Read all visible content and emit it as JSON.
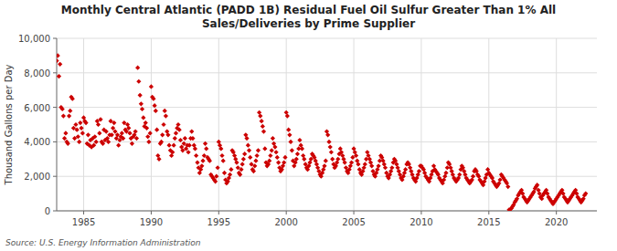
{
  "chart_data": {
    "type": "scatter",
    "title": "Monthly Central Atlantic (PADD 1B) Residual Fuel Oil Sulfur Greater Than 1% All\nSales/Deliveries by Prime Supplier",
    "ylabel": "Thousand Gallons per Day",
    "source": "Source: U.S. Energy Information Administration",
    "color": "#cc0000",
    "marker": "diamond",
    "grid": true,
    "xlim": [
      1983,
      2023
    ],
    "xticks": [
      1985,
      1990,
      1995,
      2000,
      2005,
      2010,
      2015,
      2020
    ],
    "ylim": [
      0,
      10000
    ],
    "yticks": [
      0,
      {
        "value": 2000,
        "label": "2,000"
      },
      {
        "value": 4000,
        "label": "4,000"
      },
      {
        "value": 6000,
        "label": "6,000"
      },
      {
        "value": 8000,
        "label": "8,000"
      },
      {
        "value": 10000,
        "label": "10,000"
      }
    ],
    "x": [
      1983.0,
      1983.08,
      1983.17,
      1983.25,
      1983.33,
      1983.42,
      1983.5,
      1983.58,
      1983.67,
      1983.75,
      1983.83,
      1983.92,
      1984.0,
      1984.08,
      1984.17,
      1984.25,
      1984.33,
      1984.42,
      1984.5,
      1984.58,
      1984.67,
      1984.75,
      1984.83,
      1984.92,
      1985.0,
      1985.08,
      1985.17,
      1985.25,
      1985.33,
      1985.42,
      1985.5,
      1985.58,
      1985.67,
      1985.75,
      1985.83,
      1985.92,
      1986.0,
      1986.08,
      1986.17,
      1986.25,
      1986.33,
      1986.42,
      1986.5,
      1986.58,
      1986.67,
      1986.75,
      1986.83,
      1986.92,
      1987.0,
      1987.08,
      1987.17,
      1987.25,
      1987.33,
      1987.42,
      1987.5,
      1987.58,
      1987.67,
      1987.75,
      1987.83,
      1987.92,
      1988.0,
      1988.08,
      1988.17,
      1988.25,
      1988.33,
      1988.42,
      1988.5,
      1988.58,
      1988.67,
      1988.75,
      1988.83,
      1988.92,
      1989.0,
      1989.08,
      1989.17,
      1989.25,
      1989.33,
      1989.42,
      1989.5,
      1989.58,
      1989.67,
      1989.75,
      1989.83,
      1989.92,
      1990.0,
      1990.08,
      1990.17,
      1990.25,
      1990.33,
      1990.42,
      1990.5,
      1990.58,
      1990.67,
      1990.75,
      1990.83,
      1990.92,
      1991.0,
      1991.08,
      1991.17,
      1991.25,
      1991.33,
      1991.42,
      1991.5,
      1991.58,
      1991.67,
      1991.75,
      1991.83,
      1991.92,
      1992.0,
      1992.08,
      1992.17,
      1992.25,
      1992.33,
      1992.42,
      1992.5,
      1992.58,
      1992.67,
      1992.75,
      1992.83,
      1992.92,
      1993.0,
      1993.08,
      1993.17,
      1993.25,
      1993.33,
      1993.42,
      1993.5,
      1993.58,
      1993.67,
      1993.75,
      1993.83,
      1993.92,
      1994.0,
      1994.08,
      1994.17,
      1994.25,
      1994.33,
      1994.42,
      1994.5,
      1994.58,
      1994.67,
      1994.75,
      1994.83,
      1994.92,
      1995.0,
      1995.08,
      1995.17,
      1995.25,
      1995.33,
      1995.42,
      1995.5,
      1995.58,
      1995.67,
      1995.75,
      1995.83,
      1995.92,
      1996.0,
      1996.08,
      1996.17,
      1996.25,
      1996.33,
      1996.42,
      1996.5,
      1996.58,
      1996.67,
      1996.75,
      1996.83,
      1996.92,
      1997.0,
      1997.08,
      1997.17,
      1997.25,
      1997.33,
      1997.42,
      1997.5,
      1997.58,
      1997.67,
      1997.75,
      1997.83,
      1997.92,
      1998.0,
      1998.08,
      1998.17,
      1998.25,
      1998.33,
      1998.42,
      1998.5,
      1998.58,
      1998.67,
      1998.75,
      1998.83,
      1998.92,
      1999.0,
      1999.08,
      1999.17,
      1999.25,
      1999.33,
      1999.42,
      1999.5,
      1999.58,
      1999.67,
      1999.75,
      1999.83,
      1999.92,
      2000.0,
      2000.08,
      2000.17,
      2000.25,
      2000.33,
      2000.42,
      2000.5,
      2000.58,
      2000.67,
      2000.75,
      2000.83,
      2000.92,
      2001.0,
      2001.08,
      2001.17,
      2001.25,
      2001.33,
      2001.42,
      2001.5,
      2001.58,
      2001.67,
      2001.75,
      2001.83,
      2001.92,
      2002.0,
      2002.08,
      2002.17,
      2002.25,
      2002.33,
      2002.42,
      2002.5,
      2002.58,
      2002.67,
      2002.75,
      2002.83,
      2002.92,
      2003.0,
      2003.08,
      2003.17,
      2003.25,
      2003.33,
      2003.42,
      2003.5,
      2003.58,
      2003.67,
      2003.75,
      2003.83,
      2003.92,
      2004.0,
      2004.08,
      2004.17,
      2004.25,
      2004.33,
      2004.42,
      2004.5,
      2004.58,
      2004.67,
      2004.75,
      2004.83,
      2004.92,
      2005.0,
      2005.08,
      2005.17,
      2005.25,
      2005.33,
      2005.42,
      2005.5,
      2005.58,
      2005.67,
      2005.75,
      2005.83,
      2005.92,
      2006.0,
      2006.08,
      2006.17,
      2006.25,
      2006.33,
      2006.42,
      2006.5,
      2006.58,
      2006.67,
      2006.75,
      2006.83,
      2006.92,
      2007.0,
      2007.08,
      2007.17,
      2007.25,
      2007.33,
      2007.42,
      2007.5,
      2007.58,
      2007.67,
      2007.75,
      2007.83,
      2007.92,
      2008.0,
      2008.08,
      2008.17,
      2008.25,
      2008.33,
      2008.42,
      2008.5,
      2008.58,
      2008.67,
      2008.75,
      2008.83,
      2008.92,
      2009.0,
      2009.08,
      2009.17,
      2009.25,
      2009.33,
      2009.42,
      2009.5,
      2009.58,
      2009.67,
      2009.75,
      2009.83,
      2009.92,
      2010.0,
      2010.08,
      2010.17,
      2010.25,
      2010.33,
      2010.42,
      2010.5,
      2010.58,
      2010.67,
      2010.75,
      2010.83,
      2010.92,
      2011.0,
      2011.08,
      2011.17,
      2011.25,
      2011.33,
      2011.42,
      2011.5,
      2011.58,
      2011.67,
      2011.75,
      2011.83,
      2011.92,
      2012.0,
      2012.08,
      2012.17,
      2012.25,
      2012.33,
      2012.42,
      2012.5,
      2012.58,
      2012.67,
      2012.75,
      2012.83,
      2012.92,
      2013.0,
      2013.08,
      2013.17,
      2013.25,
      2013.33,
      2013.42,
      2013.5,
      2013.58,
      2013.67,
      2013.75,
      2013.83,
      2013.92,
      2014.0,
      2014.08,
      2014.17,
      2014.25,
      2014.33,
      2014.42,
      2014.5,
      2014.58,
      2014.67,
      2014.75,
      2014.83,
      2014.92,
      2015.0,
      2015.08,
      2015.17,
      2015.25,
      2015.33,
      2015.42,
      2015.5,
      2015.58,
      2015.67,
      2015.75,
      2015.83,
      2015.92,
      2016.0,
      2016.08,
      2016.17,
      2016.25,
      2016.33,
      2016.42,
      2016.5,
      2016.58,
      2016.67,
      2016.75,
      2016.83,
      2016.92,
      2017.0,
      2017.08,
      2017.17,
      2017.25,
      2017.33,
      2017.42,
      2017.5,
      2017.58,
      2017.67,
      2017.75,
      2017.83,
      2017.92,
      2018.0,
      2018.08,
      2018.17,
      2018.25,
      2018.33,
      2018.42,
      2018.5,
      2018.58,
      2018.67,
      2018.75,
      2018.83,
      2018.92,
      2019.0,
      2019.08,
      2019.17,
      2019.25,
      2019.33,
      2019.42,
      2019.5,
      2019.58,
      2019.67,
      2019.75,
      2019.83,
      2019.92,
      2020.0,
      2020.08,
      2020.17,
      2020.25,
      2020.33,
      2020.42,
      2020.5,
      2020.58,
      2020.67,
      2020.75,
      2020.83,
      2020.92,
      2021.0,
      2021.08,
      2021.17,
      2021.25,
      2021.33,
      2021.42,
      2021.5,
      2021.58,
      2021.67,
      2021.75,
      2021.83,
      2021.92,
      2022.0,
      2022.08,
      2022.17
    ],
    "values": [
      8700,
      9000,
      7800,
      8500,
      6000,
      5900,
      5500,
      4200,
      4500,
      4000,
      3900,
      5500,
      5800,
      6600,
      6500,
      4800,
      4200,
      5000,
      4700,
      4300,
      4000,
      5100,
      4800,
      4500,
      5400,
      5200,
      5100,
      3900,
      4400,
      3800,
      4100,
      3700,
      4200,
      3800,
      4300,
      4000,
      5200,
      5000,
      4500,
      5300,
      4000,
      3900,
      4700,
      4100,
      4600,
      4200,
      4000,
      4400,
      5200,
      4400,
      4800,
      5100,
      4600,
      4200,
      4400,
      3800,
      4100,
      4300,
      4500,
      4200,
      5100,
      4700,
      4600,
      5000,
      4800,
      4500,
      4200,
      3900,
      4300,
      4400,
      4600,
      4200,
      8300,
      7500,
      6700,
      6200,
      5900,
      5400,
      4900,
      5100,
      4800,
      4300,
      4000,
      4500,
      7200,
      6600,
      6500,
      6100,
      5800,
      4700,
      3200,
      3000,
      3900,
      4000,
      4400,
      5000,
      5800,
      5500,
      4600,
      4400,
      3800,
      3500,
      3200,
      3400,
      3800,
      4200,
      4500,
      4800,
      5000,
      4700,
      4100,
      3700,
      3500,
      3900,
      4200,
      3600,
      3800,
      3400,
      3800,
      4200,
      4600,
      4200,
      3800,
      3600,
      3200,
      2800,
      2500,
      2200,
      2400,
      2600,
      2900,
      3200,
      3900,
      3600,
      3100,
      3000,
      2900,
      2100,
      2000,
      1900,
      1800,
      1700,
      2000,
      2500,
      4000,
      3800,
      3600,
      3200,
      2900,
      2200,
      1800,
      1600,
      1700,
      1900,
      2100,
      2400,
      3500,
      3400,
      3200,
      3000,
      2800,
      2500,
      2200,
      2100,
      2400,
      2700,
      3000,
      3300,
      4400,
      4200,
      3800,
      3500,
      3100,
      2700,
      2400,
      2300,
      2600,
      2900,
      3200,
      3500,
      5700,
      5500,
      5200,
      4900,
      4600,
      3600,
      2800,
      2600,
      2700,
      2900,
      3200,
      3500,
      4200,
      3900,
      3700,
      3400,
      3100,
      2800,
      2500,
      2300,
      2400,
      2600,
      2800,
      3100,
      5700,
      5500,
      4700,
      4400,
      4000,
      3500,
      2900,
      2600,
      2800,
      3000,
      3300,
      3600,
      4100,
      3800,
      3600,
      3200,
      3000,
      2700,
      2500,
      2400,
      2600,
      2800,
      3000,
      3300,
      3200,
      3100,
      2900,
      2700,
      2500,
      2300,
      2100,
      2000,
      2200,
      2400,
      2600,
      2900,
      4600,
      4400,
      4000,
      3700,
      3400,
      3000,
      2700,
      2500,
      2600,
      2800,
      3000,
      3300,
      3600,
      3400,
      3200,
      3000,
      2800,
      2500,
      2300,
      2200,
      2400,
      2600,
      2800,
      3100,
      3600,
      3400,
      3200,
      2900,
      2700,
      2400,
      2200,
      2100,
      2300,
      2500,
      2700,
      3000,
      3400,
      3200,
      3000,
      2800,
      2600,
      2300,
      2100,
      2000,
      2200,
      2400,
      2600,
      2900,
      3200,
      3100,
      2900,
      2700,
      2500,
      2200,
      2000,
      1900,
      2100,
      2300,
      2500,
      2800,
      3000,
      2900,
      2700,
      2500,
      2300,
      2100,
      1900,
      1800,
      2000,
      2200,
      2400,
      2700,
      2800,
      2700,
      2500,
      2300,
      2100,
      1900,
      1800,
      1700,
      1900,
      2100,
      2300,
      2600,
      2600,
      2500,
      2400,
      2200,
      2000,
      1900,
      1800,
      1700,
      1900,
      2100,
      2300,
      2600,
      2400,
      2300,
      2200,
      2100,
      1900,
      1800,
      1700,
      1600,
      1800,
      2000,
      2200,
      2500,
      2800,
      2700,
      2500,
      2300,
      2100,
      1900,
      1800,
      1700,
      1800,
      1900,
      2100,
      2400,
      2600,
      2500,
      2300,
      2100,
      1900,
      1800,
      1700,
      1600,
      1700,
      1800,
      2000,
      2300,
      2400,
      2300,
      2100,
      2000,
      1800,
      1700,
      1600,
      1500,
      1700,
      1900,
      2100,
      2400,
      2200,
      2100,
      2000,
      1900,
      1700,
      1600,
      1500,
      1400,
      1500,
      1600,
      1800,
      2100,
      2000,
      1900,
      1800,
      1700,
      1600,
      1400,
      60,
      80,
      150,
      250,
      350,
      500,
      600,
      700,
      900,
      1000,
      1100,
      1200,
      1000,
      800,
      700,
      600,
      500,
      600,
      700,
      800,
      900,
      1000,
      1100,
      1300,
      1400,
      1500,
      1200,
      1000,
      800,
      700,
      900,
      1000,
      1100,
      1200,
      1000,
      800,
      700,
      600,
      500,
      400,
      500,
      600,
      700,
      800,
      900,
      1000,
      1100,
      1200,
      1000,
      800,
      700,
      600,
      500,
      600,
      700,
      800,
      900,
      1000,
      1100,
      1200,
      1000,
      800,
      700,
      600,
      500,
      600,
      700,
      900,
      1000
    ]
  }
}
